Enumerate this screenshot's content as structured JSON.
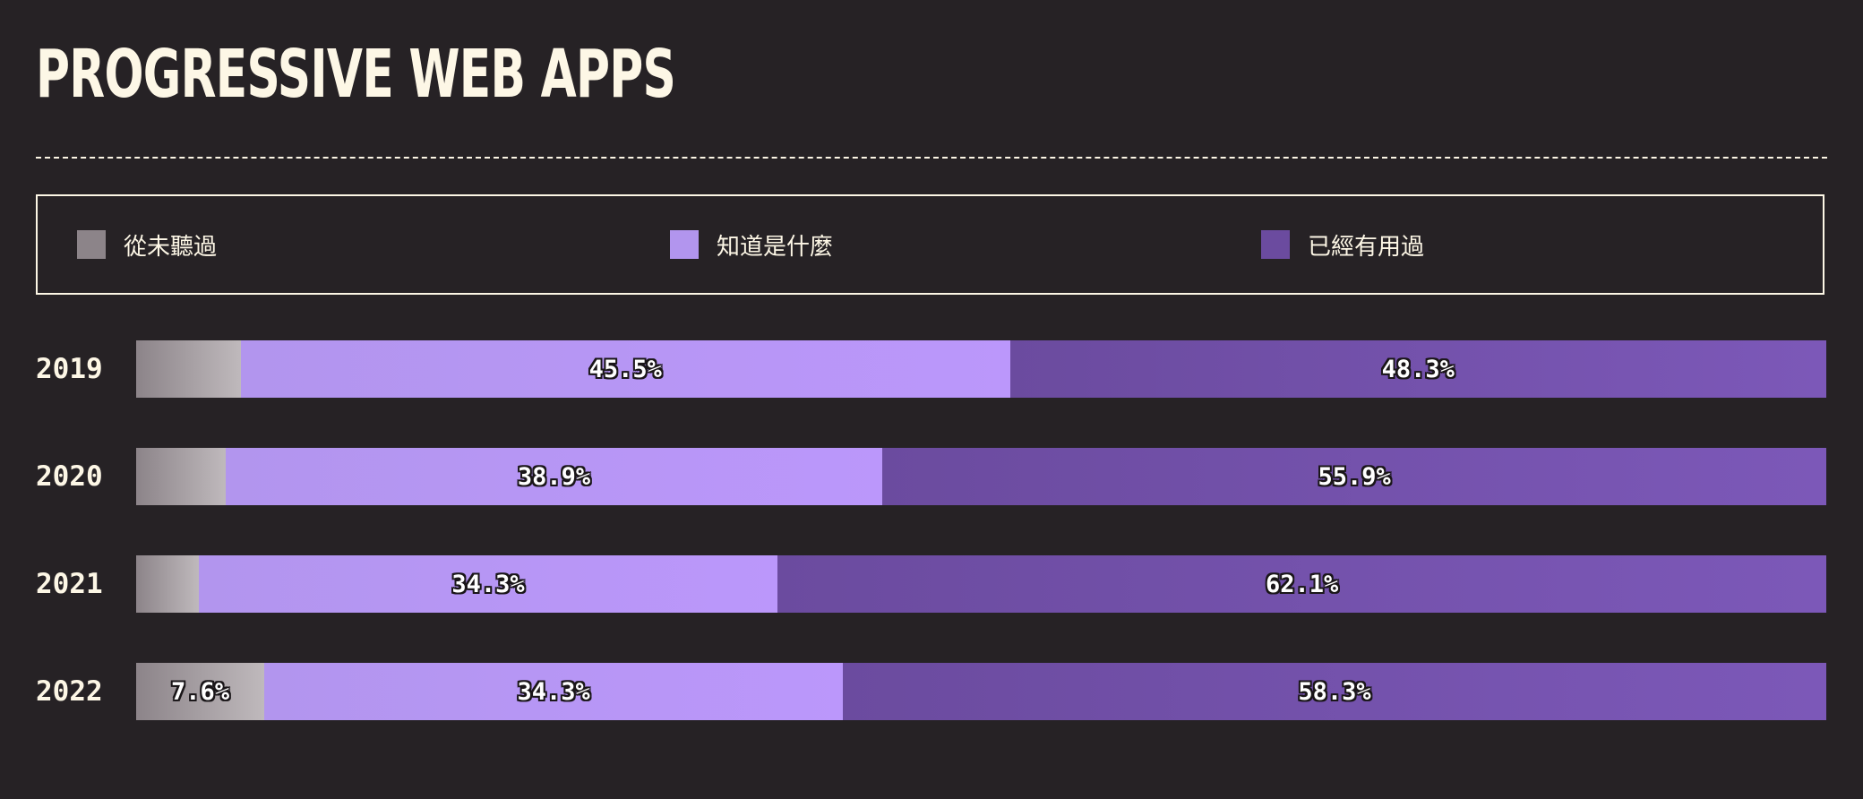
{
  "chart_data": {
    "type": "bar",
    "orientation": "horizontal",
    "stacked": true,
    "normalized": true,
    "title": "PROGRESSIVE WEB APPS",
    "categories": [
      "2019",
      "2020",
      "2021",
      "2022"
    ],
    "series": [
      {
        "name": "從未聽過",
        "color": "#8c8489",
        "color_end": "#bfb9bc",
        "values": [
          6.2,
          5.3,
          3.7,
          7.6
        ],
        "labels": [
          "",
          "",
          "",
          "7.6%"
        ]
      },
      {
        "name": "知道是什麼",
        "color": "#b295ee",
        "color_end": "#bb97fb",
        "values": [
          45.5,
          38.9,
          34.3,
          34.3
        ],
        "labels": [
          "45.5%",
          "38.9%",
          "34.3%",
          "34.3%"
        ]
      },
      {
        "name": "已經有用過",
        "color": "#6b4b9f",
        "color_end": "#7c58b8",
        "values": [
          48.3,
          55.9,
          62.1,
          58.3
        ],
        "labels": [
          "48.3%",
          "55.9%",
          "62.1%",
          "58.3%"
        ]
      }
    ],
    "legend_position": "top",
    "grid": false
  }
}
